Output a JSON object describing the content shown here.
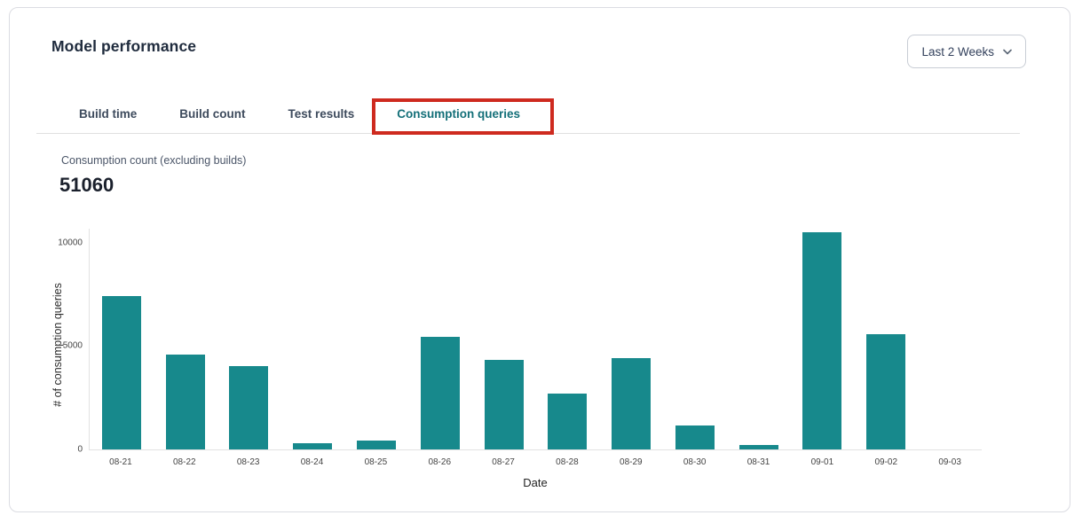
{
  "header": {
    "title": "Model performance",
    "time_range": {
      "value": "Last 2 Weeks"
    }
  },
  "tabs": [
    {
      "label": "Build time",
      "active": false,
      "annotated": false
    },
    {
      "label": "Build count",
      "active": false,
      "annotated": false
    },
    {
      "label": "Test results",
      "active": false,
      "annotated": false
    },
    {
      "label": "Consumption queries",
      "active": true,
      "annotated": true
    }
  ],
  "annotation": {
    "type": "highlight-box",
    "color": "#CE2A1F",
    "target": "Consumption queries tab"
  },
  "metric": {
    "label": "Consumption count (excluding builds)",
    "value": "51060"
  },
  "chart_data": {
    "type": "bar",
    "categories": [
      "08-21",
      "08-22",
      "08-23",
      "08-24",
      "08-25",
      "08-26",
      "08-27",
      "08-28",
      "08-29",
      "08-30",
      "08-31",
      "09-01",
      "09-02",
      "09-03"
    ],
    "values": [
      7400,
      4600,
      4040,
      300,
      420,
      5460,
      4340,
      2680,
      4430,
      1140,
      200,
      10490,
      5560,
      0
    ],
    "title": "",
    "xlabel": "Date",
    "ylabel": "# of consumption queries",
    "ylim": [
      0,
      10715
    ],
    "yticks": [
      0,
      5000,
      10000
    ],
    "bar_color": "#17898C",
    "grid": false,
    "legend": false
  },
  "colors": {
    "accent_teal": "#17898C",
    "active_tab_text": "#136F78",
    "annotation_red": "#CE2A1F",
    "card_border": "#DBDCE2",
    "title_text": "#1F2B3D"
  }
}
